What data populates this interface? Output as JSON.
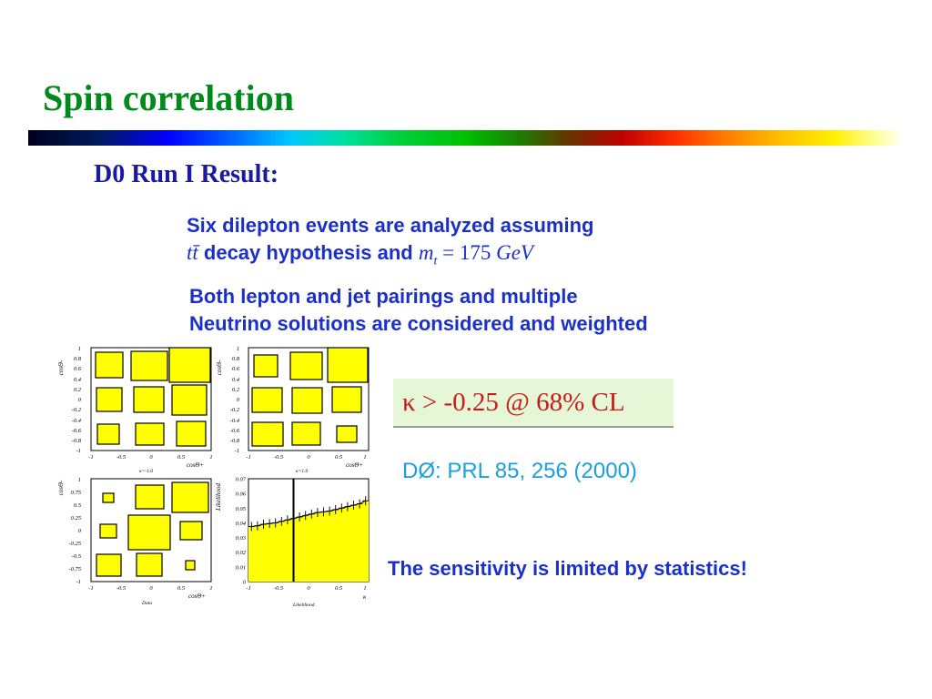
{
  "slide": {
    "title": "Spin correlation",
    "subtitle": "D0 Run I Result:",
    "paragraph1": {
      "line1": "Six dilepton events are analyzed assuming",
      "line2_math_prefix": "tt̄",
      "line2_text": " decay hypothesis and ",
      "line2_math_var": "m",
      "line2_math_sub": "t",
      "line2_math_rest": " = 175 ",
      "line2_math_unit": "GeV"
    },
    "paragraph2": {
      "line1": "Both lepton and jet pairings and multiple",
      "line2": "Neutrino solutions are considered and weighted"
    },
    "kappa_result": "κ > -0.25 @ 68% CL",
    "reference": "DØ: PRL 85, 256 (2000)",
    "conclusion": "The sensitivity is limited by statistics!",
    "colors": {
      "title": "#008a1c",
      "subtitle": "#1a1aa0",
      "body": "#1a30c8",
      "kappa": "#c81a1a",
      "reference": "#1aa0e0",
      "plot_fill": "#ffff00"
    }
  },
  "plots": {
    "box_panel_1": {
      "y_ticks": [
        "1",
        "0.8",
        "0.6",
        "0.4",
        "0.2",
        "0",
        "-0.2",
        "-0.4",
        "-0.6",
        "-0.8",
        "-1"
      ],
      "x_ticks": [
        "-1",
        "-0.5",
        "0",
        "0.5",
        "1"
      ],
      "y_label": "cosΘ-",
      "x_label": "cosΘ+",
      "x_caption": "κ=-1.0"
    },
    "box_panel_2": {
      "y_ticks": [
        "1",
        "0.8",
        "0.6",
        "0.4",
        "0.2",
        "0",
        "-0.2",
        "-0.4",
        "-0.6",
        "-0.8",
        "-1"
      ],
      "x_ticks": [
        "-1",
        "-0.5",
        "0",
        "0.5",
        "1"
      ],
      "y_label": "cosΘ-",
      "x_label": "cosΘ+",
      "x_caption": "κ=1.0"
    },
    "box_panel_3": {
      "y_ticks": [
        "1",
        "0.75",
        "0.5",
        "0.25",
        "0",
        "-0.25",
        "-0.5",
        "-0.75",
        "-1"
      ],
      "x_ticks": [
        "-1",
        "-0.5",
        "0",
        "0.5",
        "1"
      ],
      "y_label": "cosΘ-",
      "x_label": "cosΘ+",
      "x_caption": "Data"
    }
  },
  "chart_data": {
    "type": "area",
    "title": "",
    "xlabel": "κ",
    "ylabel": "Likelihood",
    "x_caption": "Likelihood",
    "x_ticks": [
      "-1",
      "-0.5",
      "0",
      "0.5",
      "1"
    ],
    "y_ticks": [
      "0.07",
      "0.06",
      "0.05",
      "0.04",
      "0.03",
      "0.02",
      "0.01",
      "0"
    ],
    "xlim": [
      -1,
      1
    ],
    "ylim": [
      0,
      0.07
    ],
    "grid": false,
    "vertical_line_x": -0.25,
    "x": [
      -0.95,
      -0.85,
      -0.75,
      -0.65,
      -0.55,
      -0.45,
      -0.35,
      -0.25,
      -0.15,
      -0.05,
      0.05,
      0.15,
      0.25,
      0.35,
      0.45,
      0.55,
      0.65,
      0.75,
      0.85,
      0.95
    ],
    "series": [
      {
        "values": [
          0.0375,
          0.038,
          0.039,
          0.0395,
          0.04,
          0.041,
          0.042,
          0.043,
          0.044,
          0.045,
          0.046,
          0.047,
          0.0475,
          0.048,
          0.049,
          0.05,
          0.051,
          0.052,
          0.053,
          0.055
        ]
      }
    ]
  }
}
